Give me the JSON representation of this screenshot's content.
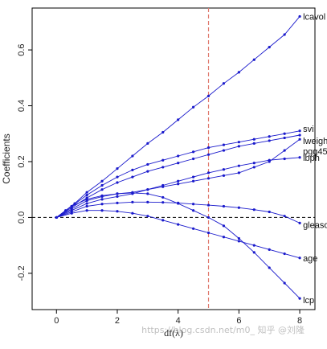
{
  "watermark": "https://blog.csdn.net/m0_   知乎 @刘隆",
  "chart_data": {
    "type": "line",
    "xlabel": "df(λ)",
    "ylabel": "Coefficients",
    "xlim": [
      -0.8,
      8.5
    ],
    "ylim": [
      -0.33,
      0.75
    ],
    "xticks": [
      0,
      2,
      4,
      6,
      8
    ],
    "yticks": [
      -0.2,
      0.0,
      0.2,
      0.4,
      0.6
    ],
    "xtick_labels": [
      "0",
      "2",
      "4",
      "6",
      "8"
    ],
    "ytick_labels": [
      "-0.2",
      "0.0",
      "0.2",
      "0.4",
      "0.6"
    ],
    "vertical_reference": {
      "x": 5.0,
      "color": "#e07a6e",
      "style": "dashed"
    },
    "horizontal_reference": {
      "y": 0.0,
      "color": "#000000",
      "style": "dashed"
    },
    "line_color": "#1a1acc",
    "series": [
      {
        "name": "lcavol",
        "x": [
          0,
          0.3,
          0.6,
          1.0,
          1.5,
          2.0,
          2.5,
          3.0,
          3.5,
          4.0,
          4.5,
          5.0,
          5.5,
          6.0,
          6.5,
          7.0,
          7.5,
          8.0
        ],
        "y": [
          0,
          0.025,
          0.05,
          0.09,
          0.13,
          0.175,
          0.22,
          0.265,
          0.305,
          0.35,
          0.395,
          0.435,
          0.48,
          0.52,
          0.565,
          0.61,
          0.655,
          0.72
        ]
      },
      {
        "name": "svi",
        "x": [
          0,
          0.5,
          1.0,
          1.5,
          2.0,
          2.5,
          3.0,
          3.5,
          4.0,
          4.5,
          5.0,
          5.5,
          6.0,
          6.5,
          7.0,
          7.5,
          8.0
        ],
        "y": [
          0,
          0.04,
          0.08,
          0.115,
          0.145,
          0.17,
          0.19,
          0.205,
          0.22,
          0.235,
          0.25,
          0.26,
          0.27,
          0.28,
          0.29,
          0.3,
          0.31
        ]
      },
      {
        "name": "lweight",
        "x": [
          0,
          0.5,
          1.0,
          1.5,
          2.0,
          2.5,
          3.0,
          3.5,
          4.0,
          4.5,
          5.0,
          5.5,
          6.0,
          6.5,
          7.0,
          7.5,
          8.0
        ],
        "y": [
          0,
          0.035,
          0.07,
          0.1,
          0.125,
          0.145,
          0.165,
          0.18,
          0.195,
          0.21,
          0.225,
          0.24,
          0.255,
          0.265,
          0.275,
          0.285,
          0.295
        ]
      },
      {
        "name": "pgg45",
        "x": [
          0,
          0.5,
          1.0,
          1.5,
          2.0,
          2.5,
          3.0,
          3.5,
          4.0,
          4.5,
          5.0,
          5.5,
          6.0,
          6.5,
          7.0,
          7.5,
          8.0
        ],
        "y": [
          0,
          0.03,
          0.06,
          0.075,
          0.085,
          0.09,
          0.1,
          0.11,
          0.12,
          0.13,
          0.14,
          0.15,
          0.16,
          0.18,
          0.2,
          0.24,
          0.28
        ]
      },
      {
        "name": "lbph",
        "x": [
          0,
          0.5,
          1.0,
          1.5,
          2.0,
          2.5,
          3.0,
          3.5,
          4.0,
          4.5,
          5.0,
          5.5,
          6.0,
          6.5,
          7.0,
          7.5,
          8.0
        ],
        "y": [
          0,
          0.025,
          0.05,
          0.065,
          0.075,
          0.085,
          0.1,
          0.115,
          0.13,
          0.145,
          0.16,
          0.172,
          0.185,
          0.195,
          0.205,
          0.21,
          0.215
        ]
      },
      {
        "name": "gleason",
        "x": [
          0,
          0.5,
          1.0,
          1.5,
          2.0,
          2.5,
          3.0,
          3.5,
          4.0,
          4.5,
          5.0,
          5.5,
          6.0,
          6.5,
          7.0,
          7.5,
          8.0
        ],
        "y": [
          0,
          0.02,
          0.04,
          0.048,
          0.052,
          0.055,
          0.055,
          0.054,
          0.052,
          0.048,
          0.044,
          0.04,
          0.035,
          0.028,
          0.02,
          0.005,
          -0.02
        ]
      },
      {
        "name": "age",
        "x": [
          0,
          0.5,
          1.0,
          1.5,
          2.0,
          2.5,
          3.0,
          3.5,
          4.0,
          4.5,
          5.0,
          5.5,
          6.0,
          6.5,
          7.0,
          7.5,
          8.0
        ],
        "y": [
          0,
          0.015,
          0.025,
          0.025,
          0.022,
          0.015,
          0.005,
          -0.01,
          -0.025,
          -0.04,
          -0.055,
          -0.07,
          -0.085,
          -0.1,
          -0.115,
          -0.13,
          -0.145
        ]
      },
      {
        "name": "lcp",
        "x": [
          0,
          0.5,
          1.0,
          1.5,
          2.0,
          2.5,
          3.0,
          3.5,
          4.0,
          4.5,
          5.0,
          5.5,
          6.0,
          6.5,
          7.0,
          7.5,
          8.0
        ],
        "y": [
          0,
          0.04,
          0.065,
          0.078,
          0.085,
          0.088,
          0.085,
          0.072,
          0.05,
          0.025,
          0.0,
          -0.03,
          -0.075,
          -0.125,
          -0.18,
          -0.235,
          -0.29
        ]
      }
    ]
  }
}
